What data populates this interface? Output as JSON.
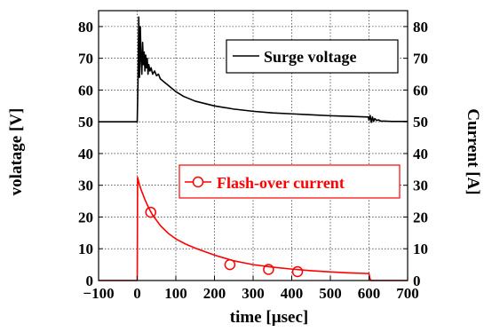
{
  "chart_data": {
    "type": "line",
    "xlabel": "time [µsec]",
    "ylabel_left": "volatage [V]",
    "ylabel_right": "Current [A]",
    "xlim": [
      -100,
      700
    ],
    "ylim": [
      0,
      85
    ],
    "x_ticks": [
      -100,
      0,
      100,
      200,
      300,
      400,
      500,
      600,
      700
    ],
    "y_ticks": [
      0,
      10,
      20,
      30,
      40,
      50,
      60,
      70,
      80
    ],
    "grid": true,
    "series": [
      {
        "name": "Surge voltage",
        "color": "#000000",
        "marker": "none",
        "x": [
          -100,
          -5,
          0,
          2,
          4,
          6,
          8,
          10,
          12,
          14,
          16,
          18,
          20,
          22,
          24,
          26,
          28,
          30,
          33,
          36,
          40,
          45,
          50,
          55,
          60,
          70,
          80,
          100,
          120,
          150,
          200,
          250,
          300,
          350,
          400,
          450,
          500,
          550,
          598,
          600,
          603,
          606,
          609,
          612,
          615,
          620,
          625,
          630,
          640,
          660,
          700
        ],
        "y": [
          50,
          50,
          50,
          62,
          83,
          64,
          80,
          70,
          65,
          75,
          68,
          72,
          66,
          71,
          67,
          70,
          65,
          68,
          66,
          67,
          65,
          66,
          64.5,
          65,
          63.5,
          62.5,
          61.5,
          59.5,
          58,
          56.5,
          55,
          54,
          53.3,
          52.8,
          52.5,
          52.2,
          51.9,
          51.7,
          51.5,
          50.5,
          52,
          49.8,
          51.5,
          50.1,
          51,
          50.4,
          50.6,
          50.2,
          50.2,
          50.1,
          50.1
        ]
      },
      {
        "name": "Flash-over current",
        "color": "#ff0000",
        "marker": "circle",
        "x": [
          -100,
          -2,
          0,
          1,
          5,
          10,
          20,
          30,
          40,
          60,
          80,
          100,
          125,
          150,
          200,
          250,
          300,
          350,
          400,
          450,
          500,
          550,
          598,
          600,
          602,
          605,
          700
        ],
        "y": [
          0,
          0,
          0,
          32.5,
          30.5,
          28.6,
          25.5,
          22.8,
          20.6,
          17.3,
          14.9,
          13.1,
          11.5,
          10.2,
          8.0,
          6.2,
          5.0,
          4.2,
          3.6,
          3.1,
          2.7,
          2.4,
          2.2,
          2.2,
          0.8,
          0,
          0
        ],
        "marker_points": [
          [
            35,
            21.5
          ],
          [
            240,
            5
          ],
          [
            340,
            3.5
          ],
          [
            415,
            2.8
          ]
        ]
      }
    ]
  }
}
